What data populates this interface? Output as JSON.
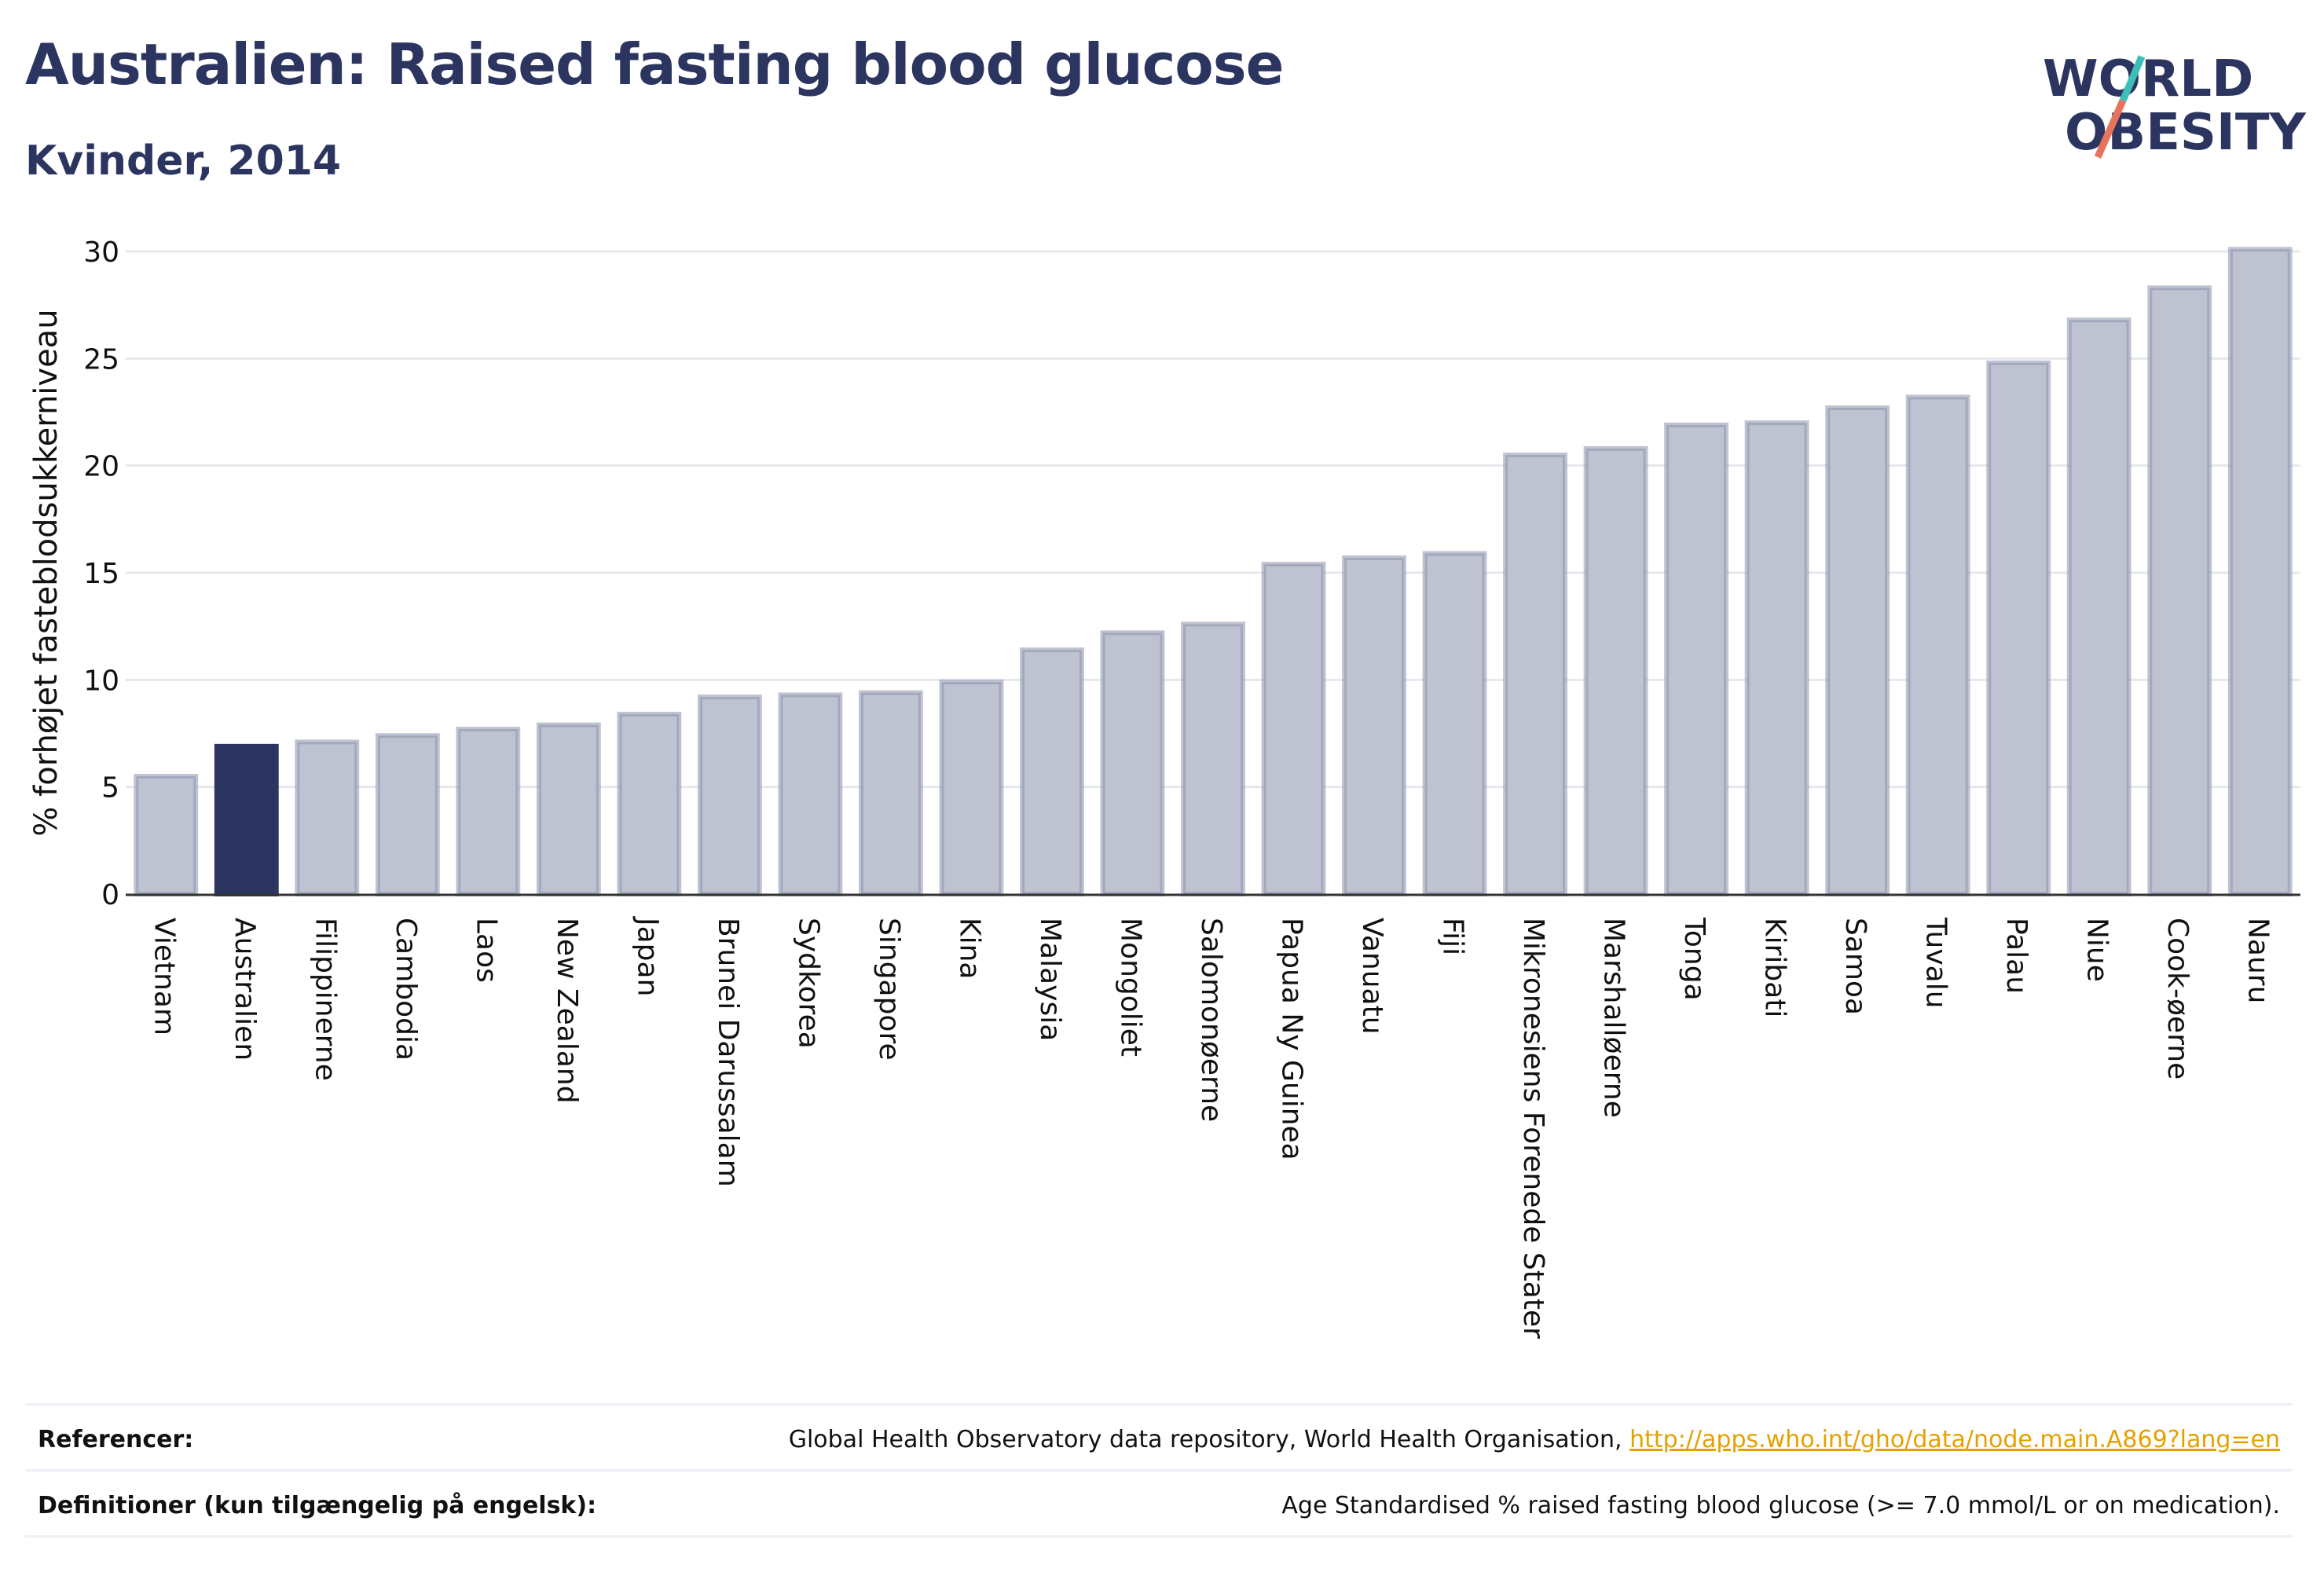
{
  "header": {
    "title": "Australien: Raised fasting blood glucose",
    "subtitle": "Kvinder, 2014"
  },
  "logo": {
    "line1": "WORLD",
    "line2": "OBESITY"
  },
  "chart_data": {
    "type": "bar",
    "ylabel": "% forhøjet fasteblodsukkerniveau",
    "ylim": [
      0,
      30
    ],
    "yticks": [
      0,
      5,
      10,
      15,
      20,
      25,
      30
    ],
    "grid": true,
    "highlight": "Australien",
    "categories": [
      "Vietnam",
      "Australien",
      "Filippinerne",
      "Cambodia",
      "Laos",
      "New Zealand",
      "Japan",
      "Brunei Darussalam",
      "Sydkorea",
      "Singapore",
      "Kina",
      "Malaysia",
      "Mongoliet",
      "Salomonøerne",
      "Papua Ny Guinea",
      "Vanuatu",
      "Fiji",
      "Mikronesiens Forenede Stater",
      "Marshalløerne",
      "Tonga",
      "Kiribati",
      "Samoa",
      "Tuvalu",
      "Palau",
      "Niue",
      "Cook-øerne",
      "Nauru"
    ],
    "values": [
      5.5,
      6.9,
      7.1,
      7.4,
      7.7,
      7.9,
      8.4,
      9.2,
      9.3,
      9.4,
      9.9,
      11.4,
      12.2,
      12.6,
      15.4,
      15.7,
      15.9,
      20.5,
      20.8,
      21.9,
      22.0,
      22.7,
      23.2,
      24.8,
      26.8,
      28.3,
      30.1
    ],
    "colors": {
      "default": "#bfc3d1",
      "default_stroke": "#8d93ad",
      "highlight": "#2b3560"
    }
  },
  "footer": {
    "references_label": "Referencer:",
    "references_text": "Global Health Observatory data repository, World Health Organisation,",
    "references_link": "http://apps.who.int/gho/data/node.main.A869?lang=en",
    "definitions_label": "Definitioner (kun tilgængelig på engelsk):",
    "definitions_text": "Age Standardised % raised fasting blood glucose (>= 7.0 mmol/L or on medication)."
  }
}
